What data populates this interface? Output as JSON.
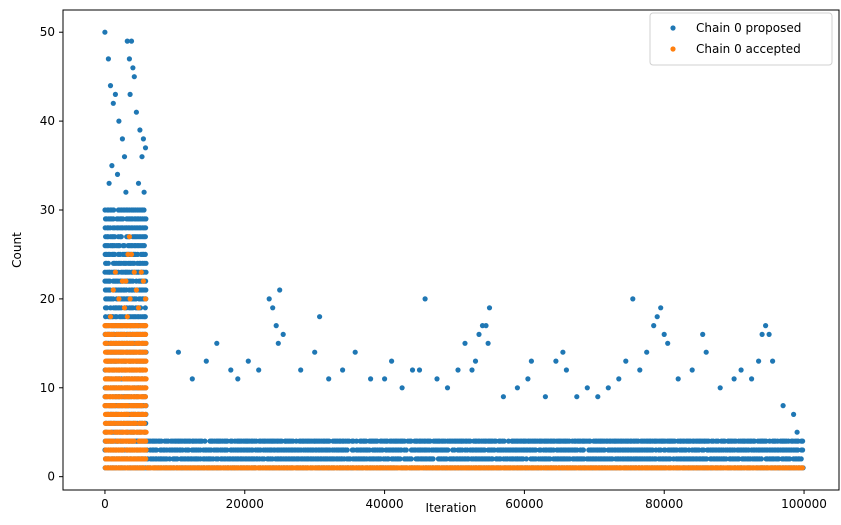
{
  "chart_data": {
    "type": "scatter",
    "xlabel": "Iteration",
    "ylabel": "Count",
    "xlim": [
      -6000,
      105000
    ],
    "ylim": [
      -1.5,
      52.5
    ],
    "xticks": [
      0,
      20000,
      40000,
      60000,
      80000,
      100000
    ],
    "yticks": [
      0,
      10,
      20,
      30,
      40,
      50
    ],
    "grid": false,
    "legend_position": "top-right",
    "series": [
      {
        "name": "Chain 0 proposed",
        "color": "#1f77b4",
        "points": [
          [
            0,
            50
          ],
          [
            500,
            47
          ],
          [
            800,
            44
          ],
          [
            1200,
            42
          ],
          [
            1500,
            43
          ],
          [
            2000,
            40
          ],
          [
            2500,
            38
          ],
          [
            3200,
            49
          ],
          [
            3800,
            49
          ],
          [
            3500,
            47
          ],
          [
            4000,
            46
          ],
          [
            4200,
            45
          ],
          [
            3600,
            43
          ],
          [
            4500,
            41
          ],
          [
            5000,
            39
          ],
          [
            5500,
            38
          ],
          [
            5800,
            37
          ],
          [
            5300,
            36
          ],
          [
            2800,
            36
          ],
          [
            1000,
            35
          ],
          [
            600,
            33
          ],
          [
            1800,
            34
          ],
          [
            3000,
            32
          ],
          [
            4800,
            33
          ],
          [
            5600,
            32
          ],
          [
            10500,
            14
          ],
          [
            12500,
            11
          ],
          [
            14500,
            13
          ],
          [
            16000,
            15
          ],
          [
            18000,
            12
          ],
          [
            19000,
            11
          ],
          [
            20500,
            13
          ],
          [
            22000,
            12
          ],
          [
            23500,
            20
          ],
          [
            24000,
            19
          ],
          [
            24500,
            17
          ],
          [
            25000,
            21
          ],
          [
            25500,
            16
          ],
          [
            24800,
            15
          ],
          [
            28000,
            12
          ],
          [
            30000,
            14
          ],
          [
            30700,
            18
          ],
          [
            32000,
            11
          ],
          [
            34000,
            12
          ],
          [
            35800,
            14
          ],
          [
            38000,
            11
          ],
          [
            40000,
            11
          ],
          [
            41000,
            13
          ],
          [
            42500,
            10
          ],
          [
            44000,
            12
          ],
          [
            45000,
            12
          ],
          [
            45800,
            20
          ],
          [
            47500,
            11
          ],
          [
            49000,
            10
          ],
          [
            50500,
            12
          ],
          [
            51500,
            15
          ],
          [
            52500,
            12
          ],
          [
            53500,
            16
          ],
          [
            54000,
            17
          ],
          [
            54500,
            17
          ],
          [
            55000,
            19
          ],
          [
            54800,
            15
          ],
          [
            53000,
            13
          ],
          [
            57000,
            9
          ],
          [
            59000,
            10
          ],
          [
            60500,
            11
          ],
          [
            61000,
            13
          ],
          [
            63000,
            9
          ],
          [
            64500,
            13
          ],
          [
            65500,
            14
          ],
          [
            66000,
            12
          ],
          [
            67500,
            9
          ],
          [
            69000,
            10
          ],
          [
            70500,
            9
          ],
          [
            72000,
            10
          ],
          [
            73500,
            11
          ],
          [
            74500,
            13
          ],
          [
            75500,
            20
          ],
          [
            76500,
            12
          ],
          [
            77500,
            14
          ],
          [
            78500,
            17
          ],
          [
            79000,
            18
          ],
          [
            79500,
            19
          ],
          [
            80000,
            16
          ],
          [
            80500,
            15
          ],
          [
            82000,
            11
          ],
          [
            84000,
            12
          ],
          [
            85500,
            16
          ],
          [
            86000,
            14
          ],
          [
            88000,
            10
          ],
          [
            90000,
            11
          ],
          [
            91000,
            12
          ],
          [
            92500,
            11
          ],
          [
            93500,
            13
          ],
          [
            94000,
            16
          ],
          [
            94500,
            17
          ],
          [
            95000,
            16
          ],
          [
            95500,
            13
          ],
          [
            97000,
            8
          ],
          [
            98500,
            7
          ],
          [
            99000,
            5
          ]
        ],
        "bands": [
          {
            "x": [
              0,
              6000
            ],
            "y": [
              1,
              30
            ],
            "density": 0.9
          },
          {
            "x": [
              6000,
              100000
            ],
            "y": [
              1,
              4
            ],
            "density": 0.9
          }
        ]
      },
      {
        "name": "Chain 0 accepted",
        "color": "#ff7f0e",
        "points": [
          [
            3500,
            27
          ],
          [
            3300,
            25
          ],
          [
            3800,
            25
          ],
          [
            1500,
            23
          ],
          [
            4200,
            23
          ],
          [
            5200,
            23
          ],
          [
            2500,
            22
          ],
          [
            3000,
            22
          ],
          [
            5500,
            22
          ],
          [
            1200,
            21
          ],
          [
            4500,
            21
          ],
          [
            2000,
            20
          ],
          [
            3600,
            20
          ],
          [
            5800,
            20
          ],
          [
            2800,
            19
          ],
          [
            4800,
            19
          ],
          [
            800,
            18
          ],
          [
            3200,
            18
          ]
        ],
        "bands": [
          {
            "x": [
              0,
              6000
            ],
            "y": [
              1,
              17
            ],
            "density": 0.95
          },
          {
            "x": [
              6000,
              100000
            ],
            "y": [
              1,
              1
            ],
            "density": 1.0
          }
        ]
      }
    ]
  }
}
